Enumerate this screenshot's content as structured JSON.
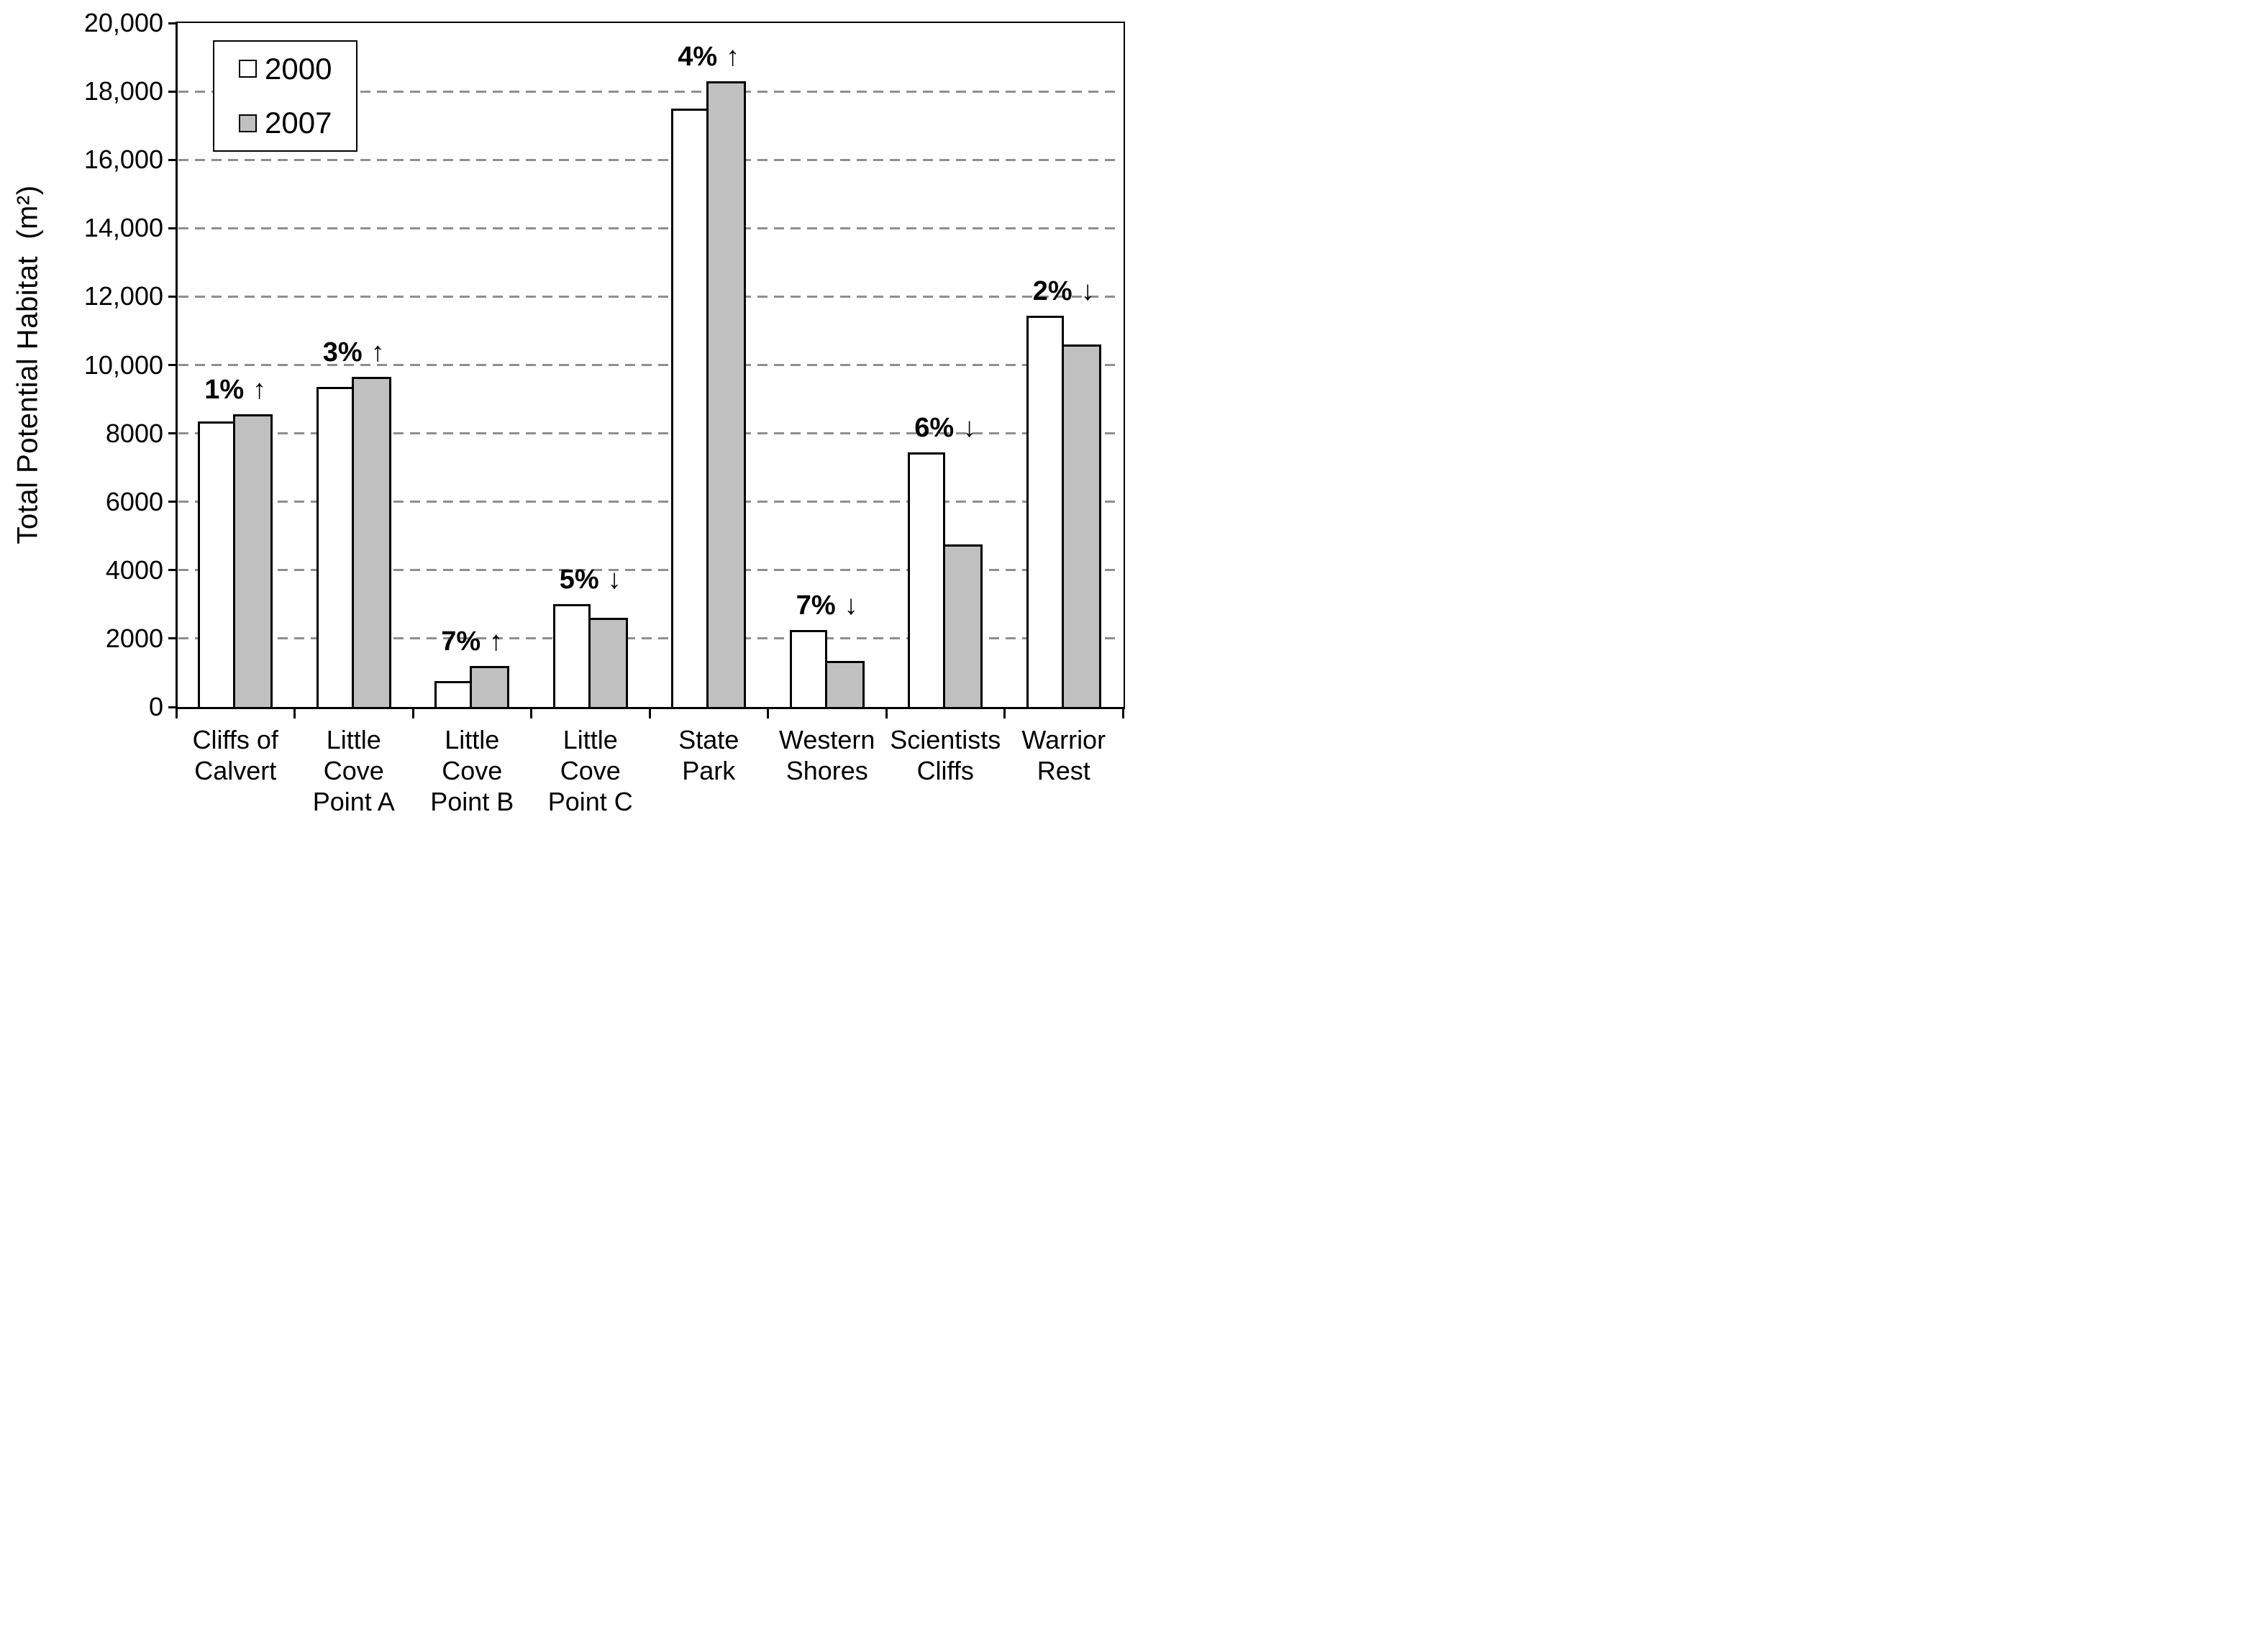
{
  "chart_data": {
    "type": "bar",
    "title": "",
    "xlabel": "",
    "ylabel": "Total Potential Habitat  (m²)",
    "ylim": [
      0,
      20000
    ],
    "ytick_interval": 2000,
    "ytick_labels": [
      "0",
      "2000",
      "4000",
      "6000",
      "8000",
      "10,000",
      "12,000",
      "14,000",
      "16,000",
      "18,000",
      "20,000"
    ],
    "grid": "horizontal-dashed",
    "legend_position": "top-left-inside",
    "categories": [
      "Cliffs of Calvert",
      "Little Cove Point A",
      "Little Cove Point B",
      "Little Cove Point C",
      "State Park",
      "Western Shores",
      "Scientists Cliffs",
      "Warrior Rest"
    ],
    "category_label_lines": [
      [
        "Cliffs of",
        "Calvert"
      ],
      [
        "Little",
        "Cove",
        "Point A"
      ],
      [
        "Little",
        "Cove",
        "Point B"
      ],
      [
        "Little",
        "Cove",
        "Point C"
      ],
      [
        "State",
        "Park"
      ],
      [
        "Western",
        "Shores"
      ],
      [
        "Scientists",
        "Cliffs"
      ],
      [
        "Warrior",
        "Rest"
      ]
    ],
    "series": [
      {
        "name": "2000",
        "fill": "#ffffff",
        "values": [
          8350,
          9350,
          750,
          3000,
          17500,
          2250,
          7450,
          11450
        ]
      },
      {
        "name": "2007",
        "fill": "#c0c0c0",
        "values": [
          8550,
          9650,
          1200,
          2600,
          18300,
          1350,
          4750,
          10600
        ]
      }
    ],
    "annotations": [
      {
        "text": "1%",
        "arrow": "↑",
        "direction": "up"
      },
      {
        "text": "3%",
        "arrow": "↑",
        "direction": "up"
      },
      {
        "text": "7%",
        "arrow": "↑",
        "direction": "up"
      },
      {
        "text": "5%",
        "arrow": "↓",
        "direction": "down"
      },
      {
        "text": "4%",
        "arrow": "↑",
        "direction": "up"
      },
      {
        "text": "7%",
        "arrow": "↓",
        "direction": "down"
      },
      {
        "text": "6%",
        "arrow": "↓",
        "direction": "down"
      },
      {
        "text": "2%",
        "arrow": "↓",
        "direction": "down"
      }
    ],
    "colors": {
      "bar_2000_fill": "#ffffff",
      "bar_2007_fill": "#c0c0c0",
      "bar_border": "#000000",
      "gridline": "#8f8f8f",
      "text": "#000000",
      "background": "#ffffff"
    }
  }
}
